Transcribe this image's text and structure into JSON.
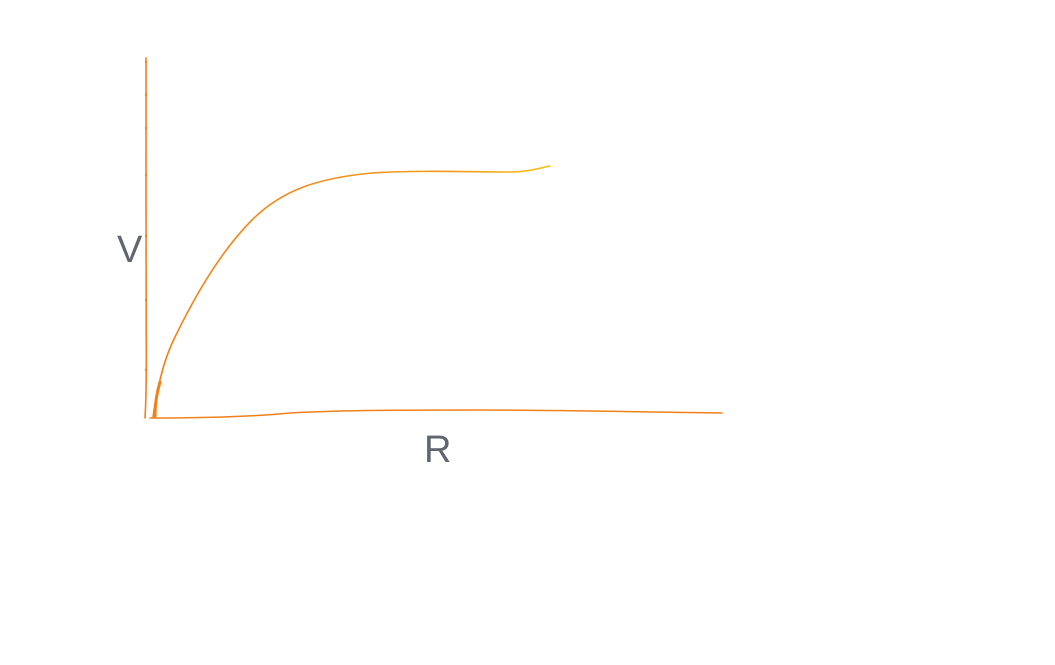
{
  "diagram": {
    "y_axis_label": "V",
    "x_axis_label": "R"
  },
  "colors": {
    "axis": "#f0801a",
    "curve": "#f29a1c",
    "curve_tip": "#f4c21a",
    "label": "#5f6670"
  }
}
